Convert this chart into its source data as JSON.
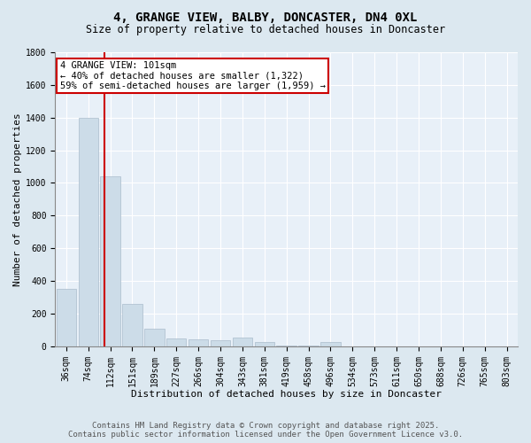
{
  "title_line1": "4, GRANGE VIEW, BALBY, DONCASTER, DN4 0XL",
  "title_line2": "Size of property relative to detached houses in Doncaster",
  "xlabel": "Distribution of detached houses by size in Doncaster",
  "ylabel": "Number of detached properties",
  "categories": [
    "36sqm",
    "74sqm",
    "112sqm",
    "151sqm",
    "189sqm",
    "227sqm",
    "266sqm",
    "304sqm",
    "343sqm",
    "381sqm",
    "419sqm",
    "458sqm",
    "496sqm",
    "534sqm",
    "573sqm",
    "611sqm",
    "650sqm",
    "688sqm",
    "726sqm",
    "765sqm",
    "803sqm"
  ],
  "values": [
    350,
    1400,
    1040,
    260,
    110,
    50,
    45,
    35,
    55,
    28,
    2,
    2,
    28,
    0,
    0,
    0,
    0,
    0,
    0,
    0,
    0
  ],
  "bar_color": "#ccdce8",
  "bar_edge_color": "#aabccc",
  "vline_x_data": 1.73,
  "vline_color": "#cc0000",
  "ylim": [
    0,
    1800
  ],
  "yticks": [
    0,
    200,
    400,
    600,
    800,
    1000,
    1200,
    1400,
    1600,
    1800
  ],
  "annotation_text": "4 GRANGE VIEW: 101sqm\n← 40% of detached houses are smaller (1,322)\n59% of semi-detached houses are larger (1,959) →",
  "annotation_box_color": "#ffffff",
  "annotation_box_edge": "#cc0000",
  "footer_line1": "Contains HM Land Registry data © Crown copyright and database right 2025.",
  "footer_line2": "Contains public sector information licensed under the Open Government Licence v3.0.",
  "background_color": "#dce8f0",
  "plot_bg_color": "#e8f0f8",
  "grid_color": "#ffffff",
  "title_fontsize": 10,
  "subtitle_fontsize": 8.5,
  "tick_fontsize": 7,
  "ylabel_fontsize": 8,
  "xlabel_fontsize": 8,
  "annotation_fontsize": 7.5,
  "footer_fontsize": 6.5
}
